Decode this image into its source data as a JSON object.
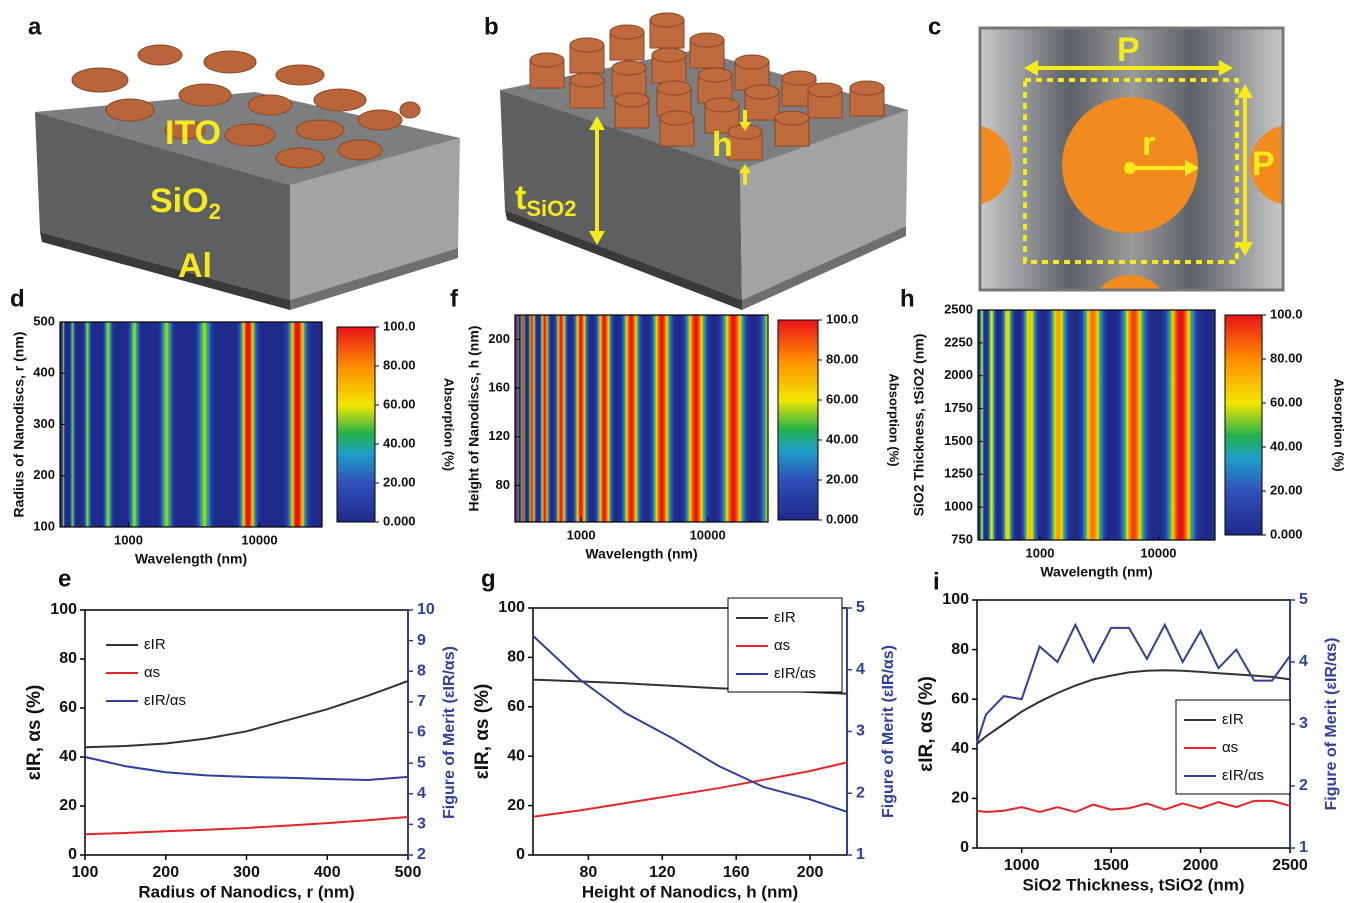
{
  "panel_labels": [
    "a",
    "b",
    "c",
    "d",
    "e",
    "f",
    "g",
    "h",
    "i"
  ],
  "illustrations": {
    "a": {
      "top": "ITO",
      "middle": {
        "base": "SiO",
        "sub": "2"
      },
      "bottom": "Al"
    },
    "b": {
      "thickness": {
        "base": "t",
        "sub": "SiO2"
      },
      "height": "h"
    },
    "c": {
      "period_x": "P",
      "period_y": "P",
      "radius": "r"
    }
  },
  "chart_data": [
    {
      "type": "heatmap",
      "xlabel": "Wavelength (nm)",
      "ylabel": "Radius of Nanodiscs, r (nm)",
      "log_x": true,
      "xlim": [
        300,
        30000
      ],
      "xticks": [
        1000,
        10000
      ],
      "ylim": [
        100,
        500
      ],
      "yticks": [
        100,
        200,
        300,
        400,
        500
      ],
      "colorbar": {
        "label": "Absorption (%)",
        "lim": [
          0,
          100
        ],
        "ticks": [
          {
            "value": 0,
            "label": "0.000"
          },
          {
            "value": 20,
            "label": "20.00"
          },
          {
            "value": 40,
            "label": "40.00"
          },
          {
            "value": 60,
            "label": "60.00"
          },
          {
            "value": 80,
            "label": "80.00"
          },
          {
            "value": 100,
            "label": "100.0"
          }
        ]
      }
    },
    {
      "type": "line",
      "xlabel": "Radius of Nanodics, r (nm)",
      "ylabel": "εIR, αs (%)",
      "y2label": "Figure of Merit (εIR/αs)",
      "xlim": [
        100,
        500
      ],
      "xticks": [
        100,
        200,
        300,
        400,
        500
      ],
      "ylim": [
        0,
        100
      ],
      "yticks": [
        0,
        20,
        40,
        60,
        80,
        100
      ],
      "y2lim": [
        2,
        10
      ],
      "y2ticks": [
        2,
        3,
        4,
        5,
        6,
        7,
        8,
        9,
        10
      ],
      "legend": "upper left",
      "x": [
        100,
        150,
        200,
        250,
        300,
        350,
        400,
        450,
        500
      ],
      "series": [
        {
          "name": "εIR",
          "color": "#333333",
          "values": [
            44,
            44.5,
            45.5,
            47.5,
            50.5,
            55,
            59.5,
            65,
            71
          ]
        },
        {
          "name": "αs",
          "color": "#e8252a",
          "values": [
            8.5,
            9,
            9.7,
            10.3,
            11,
            12,
            13,
            14.2,
            15.5
          ]
        },
        {
          "name": "εIR/αs",
          "color": "#2e3f9e",
          "axis": "y2",
          "values": [
            5.2,
            4.9,
            4.7,
            4.6,
            4.55,
            4.52,
            4.48,
            4.45,
            4.55
          ]
        }
      ]
    },
    {
      "type": "heatmap",
      "xlabel": "Wavelength (nm)",
      "ylabel": "Height of Nanodiscs, h (nm)",
      "log_x": true,
      "xlim": [
        300,
        30000
      ],
      "xticks": [
        1000,
        10000
      ],
      "ylim": [
        50,
        220
      ],
      "yticks": [
        80,
        120,
        160,
        200
      ],
      "colorbar": {
        "label": "Absorption (%)",
        "lim": [
          0,
          100
        ],
        "ticks": [
          {
            "value": 0,
            "label": "0.000"
          },
          {
            "value": 20,
            "label": "20.00"
          },
          {
            "value": 40,
            "label": "40.00"
          },
          {
            "value": 60,
            "label": "60.00"
          },
          {
            "value": 80,
            "label": "80.00"
          },
          {
            "value": 100,
            "label": "100.0"
          }
        ]
      }
    },
    {
      "type": "line",
      "xlabel": "Height of Nanodics, h (nm)",
      "ylabel": "εIR, αs (%)",
      "y2label": "Figure of Merit (εIR/αs)",
      "xlim": [
        50,
        220
      ],
      "xticks": [
        80,
        120,
        160,
        200
      ],
      "ylim": [
        0,
        100
      ],
      "yticks": [
        0,
        20,
        40,
        60,
        80,
        100
      ],
      "y2lim": [
        1,
        5
      ],
      "y2ticks": [
        1,
        2,
        3,
        4,
        5
      ],
      "legend": "upper right",
      "x": [
        50,
        75,
        100,
        125,
        150,
        175,
        200,
        220
      ],
      "series": [
        {
          "name": "εIR",
          "color": "#333333",
          "values": [
            71,
            70.3,
            69.5,
            68.5,
            67.5,
            66.8,
            66,
            65.3
          ]
        },
        {
          "name": "αs",
          "color": "#e8252a",
          "values": [
            15.5,
            18,
            21,
            24,
            27,
            30.5,
            34,
            37.5
          ]
        },
        {
          "name": "εIR/αs",
          "color": "#2e3f9e",
          "axis": "y2",
          "values": [
            4.55,
            3.85,
            3.3,
            2.9,
            2.45,
            2.1,
            1.9,
            1.7
          ]
        }
      ]
    },
    {
      "type": "heatmap",
      "xlabel": "Wavelength (nm)",
      "ylabel": "SiO2 Thickness, tSiO2 (nm)",
      "log_x": true,
      "xlim": [
        300,
        30000
      ],
      "xticks": [
        1000,
        10000
      ],
      "ylim": [
        750,
        2500
      ],
      "yticks": [
        750,
        1000,
        1250,
        1500,
        1750,
        2000,
        2250,
        2500
      ],
      "colorbar": {
        "label": "Absorption (%)",
        "lim": [
          0,
          100
        ],
        "ticks": [
          {
            "value": 0,
            "label": "0.000"
          },
          {
            "value": 20,
            "label": "20.00"
          },
          {
            "value": 40,
            "label": "40.00"
          },
          {
            "value": 60,
            "label": "60.00"
          },
          {
            "value": 80,
            "label": "80.00"
          },
          {
            "value": 100,
            "label": "100.0"
          }
        ]
      }
    },
    {
      "type": "line",
      "xlabel": "SiO2 Thickness, tSiO2 (nm)",
      "ylabel": "εIR, αs (%)",
      "y2label": "Figure of Merit (εIR/αs)",
      "xlim": [
        750,
        2500
      ],
      "xticks": [
        1000,
        1500,
        2000,
        2500
      ],
      "ylim": [
        0,
        100
      ],
      "yticks": [
        0,
        20,
        40,
        60,
        80,
        100
      ],
      "y2lim": [
        1,
        5
      ],
      "y2ticks": [
        1,
        2,
        3,
        4,
        5
      ],
      "legend": "center right",
      "x": [
        750,
        800,
        900,
        1000,
        1100,
        1200,
        1300,
        1400,
        1500,
        1600,
        1700,
        1800,
        1900,
        2000,
        2100,
        2200,
        2300,
        2400,
        2500
      ],
      "series": [
        {
          "name": "εIR",
          "color": "#333333",
          "values": [
            42,
            45,
            50,
            55,
            59,
            62.5,
            65.5,
            68,
            69.5,
            70.8,
            71.5,
            71.7,
            71.5,
            71,
            70.5,
            70,
            69.5,
            69,
            68
          ]
        },
        {
          "name": "αs",
          "color": "#e8252a",
          "values": [
            15,
            14.5,
            15,
            16.5,
            14.5,
            16.5,
            14.5,
            17.5,
            15.5,
            16,
            18,
            15.5,
            18,
            16,
            18.5,
            16.5,
            19,
            19,
            17
          ]
        },
        {
          "name": "εIR/αs",
          "color": "#2e3f9e",
          "axis": "y2",
          "values": [
            2.7,
            3.15,
            3.45,
            3.4,
            4.25,
            4.0,
            4.6,
            4.0,
            4.55,
            4.55,
            4.05,
            4.6,
            4.0,
            4.5,
            3.9,
            4.2,
            3.7,
            3.7,
            4.1
          ]
        }
      ]
    }
  ]
}
